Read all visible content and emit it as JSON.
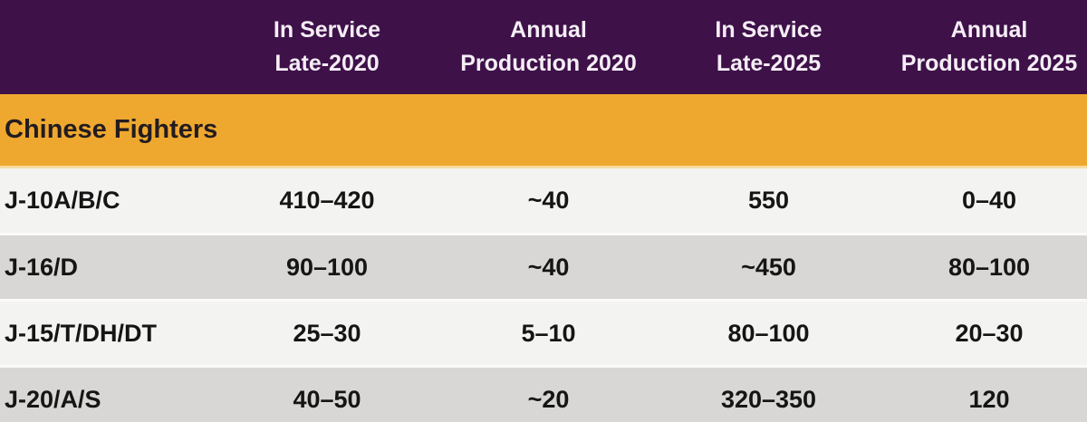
{
  "chart_data": {
    "type": "table",
    "header": {
      "columns": [
        {
          "line1": "In Service",
          "line2": "Late-2020"
        },
        {
          "line1": "Annual",
          "line2": "Production 2020"
        },
        {
          "line1": "In Service",
          "line2": "Late-2025"
        },
        {
          "line1": "Annual",
          "line2": "Production 2025"
        }
      ]
    },
    "section_label": "Chinese Fighters",
    "rows": [
      {
        "label": "J-10A/B/C",
        "values": [
          "410–420",
          "~40",
          "550",
          "0–40"
        ]
      },
      {
        "label": "J-16/D",
        "values": [
          "90–100",
          "~40",
          "~450",
          "80–100"
        ]
      },
      {
        "label": "J-15/T/DH/DT",
        "values": [
          "25–30",
          "5–10",
          "80–100",
          "20–30"
        ]
      },
      {
        "label": "J-20/A/S",
        "values": [
          "40–50",
          "~20",
          "320–350",
          "120"
        ]
      }
    ]
  },
  "colors": {
    "header_bg": "#3e1149",
    "header_text": "#f5eef5",
    "section_bg": "#efa82f",
    "section_text": "#221c21",
    "row_light_bg": "#f3f3f1",
    "row_dark_bg": "#d8d7d5",
    "row_separator": "#fbfaf8",
    "section_separator": "#f8dba3",
    "data_text": "#151515"
  }
}
